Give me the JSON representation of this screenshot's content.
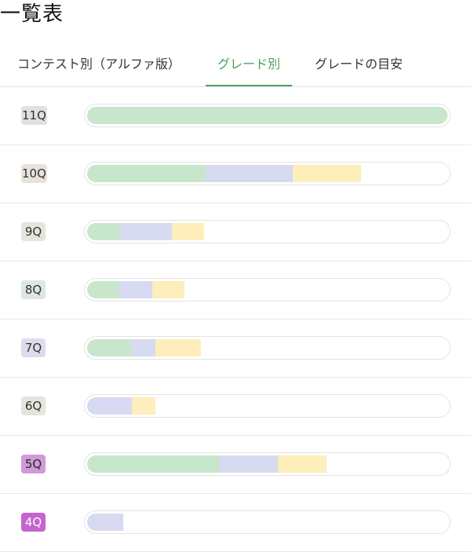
{
  "page": {
    "title": "一覧表"
  },
  "tabs": [
    {
      "label": "コンテスト別（アルファ版）",
      "active": false
    },
    {
      "label": "グレード別",
      "active": true
    },
    {
      "label": "グレードの目安",
      "active": false
    }
  ],
  "colors": {
    "green": "#c8e6cb",
    "blue": "#d7daf1",
    "yellow": "#fdeebc",
    "active_tab": "#43a461"
  },
  "grades": [
    {
      "label": "11Q",
      "badge_bg": "#e3e1e0",
      "badge_fg": "#333333",
      "progress": {
        "green": 1.0,
        "blue": 0.0,
        "yellow": 0.0
      }
    },
    {
      "label": "10Q",
      "badge_bg": "#e8e2dc",
      "badge_fg": "#333333",
      "progress": {
        "green": 0.33,
        "blue": 0.24,
        "yellow": 0.19
      }
    },
    {
      "label": "9Q",
      "badge_bg": "#e4e5dc",
      "badge_fg": "#333333",
      "progress": {
        "green": 0.09,
        "blue": 0.145,
        "yellow": 0.09
      }
    },
    {
      "label": "8Q",
      "badge_bg": "#dce6e3",
      "badge_fg": "#333333",
      "progress": {
        "green": 0.09,
        "blue": 0.09,
        "yellow": 0.09
      }
    },
    {
      "label": "7Q",
      "badge_bg": "#dcdcee",
      "badge_fg": "#333333",
      "progress": {
        "green": 0.125,
        "blue": 0.065,
        "yellow": 0.125
      }
    },
    {
      "label": "6Q",
      "badge_bg": "#e4e5dc",
      "badge_fg": "#333333",
      "progress": {
        "green": 0.0,
        "blue": 0.125,
        "yellow": 0.065
      }
    },
    {
      "label": "5Q",
      "badge_bg": "#cf9ad8",
      "badge_fg": "#2a2a2a",
      "progress": {
        "green": 0.365,
        "blue": 0.165,
        "yellow": 0.135
      }
    },
    {
      "label": "4Q",
      "badge_bg": "#c464ce",
      "badge_fg": "#ffffff",
      "progress": {
        "green": 0.0,
        "blue": 0.1,
        "yellow": 0.0
      }
    }
  ]
}
